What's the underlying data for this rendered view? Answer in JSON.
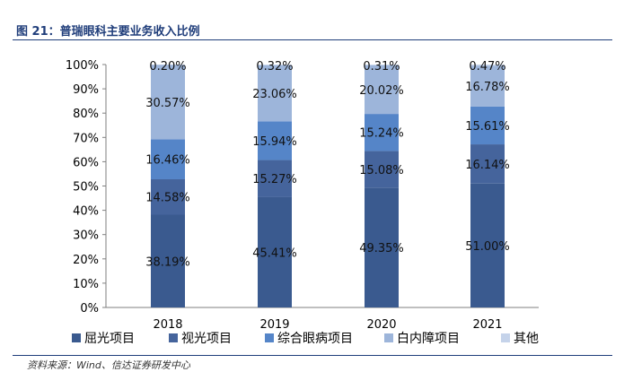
{
  "header": {
    "title": "图 21：普瑞眼科主要业务收入比例"
  },
  "source": "资料来源：Wind、信达证券研发中心",
  "chart_data": {
    "type": "bar",
    "stacked": true,
    "categories": [
      "2018",
      "2019",
      "2020",
      "2021"
    ],
    "series": [
      {
        "name": "屈光项目",
        "values": [
          38.19,
          45.41,
          49.35,
          51.0
        ],
        "labels": [
          "38.19%",
          "45.41%",
          "49.35%",
          "51.00%"
        ],
        "color": "#3a5a8f"
      },
      {
        "name": "视光项目",
        "values": [
          14.58,
          15.27,
          15.08,
          16.14
        ],
        "labels": [
          "14.58%",
          "15.27%",
          "15.08%",
          "16.14%"
        ],
        "color": "#45649c"
      },
      {
        "name": "综合眼病项目",
        "values": [
          16.46,
          15.94,
          15.24,
          15.61
        ],
        "labels": [
          "16.46%",
          "15.94%",
          "15.24%",
          "15.61%"
        ],
        "color": "#5585c8"
      },
      {
        "name": "白内障项目",
        "values": [
          30.57,
          23.06,
          20.02,
          16.78
        ],
        "labels": [
          "30.57%",
          "23.06%",
          "20.02%",
          "16.78%"
        ],
        "color": "#9db5da"
      },
      {
        "name": "其他",
        "values": [
          0.2,
          0.32,
          0.31,
          0.47
        ],
        "labels": [
          "0.20%",
          "0.32%",
          "0.31%",
          "0.47%"
        ],
        "color": "#c5d3ea"
      }
    ],
    "y_ticks": [
      "0%",
      "10%",
      "20%",
      "30%",
      "40%",
      "50%",
      "60%",
      "70%",
      "80%",
      "90%",
      "100%"
    ],
    "ylim": [
      0,
      100
    ],
    "legend_position": "bottom",
    "grid": false
  }
}
